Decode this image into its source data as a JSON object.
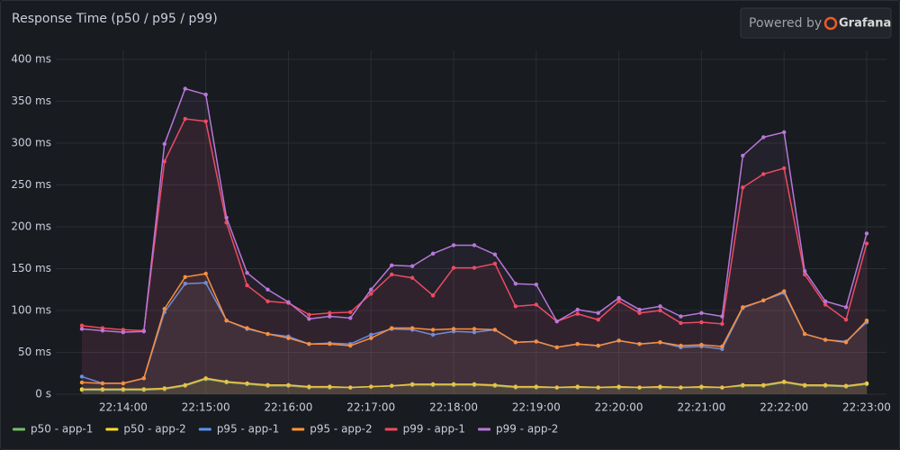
{
  "chart_data": {
    "type": "line",
    "title": "Response Time (p50 / p95 / p99)",
    "badge": {
      "prefix": "Powered by",
      "brand": "Grafana"
    },
    "x": [
      "22:13:30",
      "22:13:45",
      "22:14:00",
      "22:14:15",
      "22:14:30",
      "22:14:45",
      "22:15:00",
      "22:15:15",
      "22:15:30",
      "22:15:45",
      "22:16:00",
      "22:16:15",
      "22:16:30",
      "22:16:45",
      "22:17:00",
      "22:17:15",
      "22:17:30",
      "22:17:45",
      "22:18:00",
      "22:18:15",
      "22:18:30",
      "22:18:45",
      "22:19:00",
      "22:19:15",
      "22:19:30",
      "22:19:45",
      "22:20:00",
      "22:20:15",
      "22:20:30",
      "22:20:45",
      "22:21:00",
      "22:21:15",
      "22:21:30",
      "22:21:45",
      "22:22:00",
      "22:22:15",
      "22:22:30",
      "22:22:45",
      "22:23:00"
    ],
    "xticks": [
      "22:14:00",
      "22:15:00",
      "22:16:00",
      "22:17:00",
      "22:18:00",
      "22:19:00",
      "22:20:00",
      "22:21:00",
      "22:22:00",
      "22:23:00"
    ],
    "ylim": [
      0,
      400
    ],
    "yticks": [
      {
        "value": 0,
        "label": "0 s"
      },
      {
        "value": 50,
        "label": "50 ms"
      },
      {
        "value": 100,
        "label": "100 ms"
      },
      {
        "value": 150,
        "label": "150 ms"
      },
      {
        "value": 200,
        "label": "200 ms"
      },
      {
        "value": 250,
        "label": "250 ms"
      },
      {
        "value": 300,
        "label": "300 ms"
      },
      {
        "value": 350,
        "label": "350 ms"
      },
      {
        "value": 400,
        "label": "400 ms"
      }
    ],
    "grid": true,
    "legend": "bottom-left",
    "series": [
      {
        "name": "p50 - app-1",
        "color": "#73bf69",
        "values": [
          5,
          5,
          5,
          5,
          6,
          10,
          18,
          14,
          12,
          10,
          10,
          8,
          8,
          8,
          9,
          10,
          11,
          11,
          11,
          11,
          10,
          8,
          8,
          8,
          8,
          8,
          8,
          8,
          8,
          8,
          8,
          8,
          10,
          10,
          14,
          10,
          10,
          9,
          12
        ]
      },
      {
        "name": "p50 - app-2",
        "color": "#fade2a",
        "values": [
          6,
          6,
          6,
          6,
          7,
          11,
          19,
          15,
          13,
          11,
          11,
          9,
          9,
          8,
          9,
          10,
          12,
          12,
          12,
          12,
          11,
          9,
          9,
          8,
          9,
          8,
          9,
          8,
          9,
          8,
          9,
          8,
          11,
          11,
          15,
          11,
          11,
          10,
          13
        ]
      },
      {
        "name": "p95 - app-1",
        "color": "#5794f2",
        "values": [
          21,
          13,
          13,
          19,
          98,
          132,
          133,
          88,
          78,
          72,
          69,
          60,
          61,
          60,
          71,
          78,
          77,
          71,
          75,
          74,
          77,
          62,
          63,
          56,
          60,
          58,
          64,
          60,
          62,
          56,
          57,
          54,
          103,
          112,
          121,
          72,
          65,
          63,
          86
        ]
      },
      {
        "name": "p95 - app-2",
        "color": "#ff9830",
        "values": [
          14,
          13,
          13,
          19,
          102,
          140,
          144,
          88,
          79,
          72,
          67,
          60,
          60,
          58,
          67,
          79,
          79,
          77,
          78,
          78,
          77,
          62,
          63,
          56,
          60,
          58,
          64,
          60,
          62,
          58,
          59,
          57,
          104,
          112,
          123,
          72,
          65,
          62,
          88
        ]
      },
      {
        "name": "p99 - app-1",
        "color": "#f2495c",
        "values": [
          82,
          79,
          77,
          76,
          278,
          329,
          326,
          205,
          130,
          111,
          109,
          95,
          97,
          98,
          120,
          143,
          139,
          118,
          151,
          151,
          156,
          105,
          107,
          87,
          96,
          89,
          111,
          97,
          100,
          85,
          86,
          84,
          247,
          263,
          270,
          143,
          107,
          89,
          180
        ]
      },
      {
        "name": "p99 - app-2",
        "color": "#b877d9",
        "values": [
          78,
          76,
          74,
          75,
          299,
          365,
          358,
          211,
          145,
          125,
          110,
          90,
          93,
          91,
          125,
          154,
          153,
          168,
          178,
          178,
          167,
          132,
          131,
          87,
          101,
          97,
          115,
          101,
          105,
          93,
          97,
          93,
          285,
          307,
          313,
          147,
          111,
          104,
          192
        ]
      }
    ]
  }
}
